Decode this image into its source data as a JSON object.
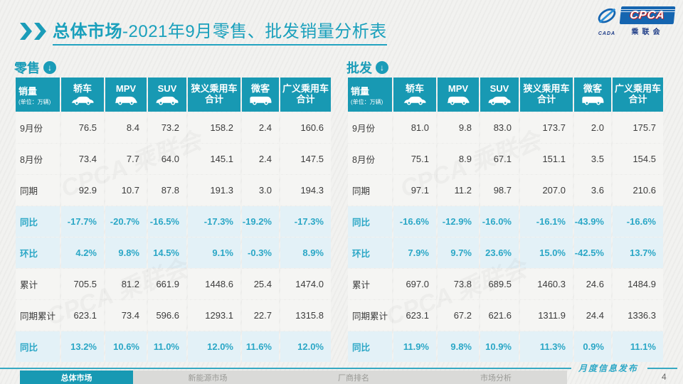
{
  "page": {
    "title_highlight": "总体市场",
    "title_rest": "-2021年9月零售、批发销量分析表",
    "page_number": "4"
  },
  "logo": {
    "name": "CPCA",
    "subtitle": "乘联会",
    "small": "CADA",
    "watermark": "CPCA 乘联会"
  },
  "colors": {
    "accent_teal": "#1899b3",
    "percent_text": "#2ba7c6",
    "percent_row_bg": "#e3f1f7",
    "logo_blue": "#1565b0"
  },
  "table_header": {
    "col0_title": "销量",
    "col0_unit": "(单位：万辆)",
    "cols": [
      {
        "label": "轿车",
        "icon": "sedan-car-icon"
      },
      {
        "label": "MPV",
        "icon": "mpv-car-icon"
      },
      {
        "label": "SUV",
        "icon": "suv-car-icon"
      },
      {
        "label": "狭义乘用车合计",
        "icon": ""
      },
      {
        "label": "微客",
        "icon": "microvan-icon"
      },
      {
        "label": "广义乘用车合计",
        "icon": ""
      }
    ]
  },
  "tables": [
    {
      "id": "retail",
      "section_label": "零售",
      "section_icon": "circle-down-arrow-icon",
      "rows": [
        {
          "label": "9月份",
          "style": "normal",
          "values": [
            "76.5",
            "8.4",
            "73.2",
            "158.2",
            "2.4",
            "160.6"
          ]
        },
        {
          "label": "8月份",
          "style": "normal",
          "values": [
            "73.4",
            "7.7",
            "64.0",
            "145.1",
            "2.4",
            "147.5"
          ]
        },
        {
          "label": "同期",
          "style": "normal",
          "values": [
            "92.9",
            "10.7",
            "87.8",
            "191.3",
            "3.0",
            "194.3"
          ]
        },
        {
          "label": "同比",
          "style": "pct",
          "values": [
            "-17.7%",
            "-20.7%",
            "-16.5%",
            "-17.3%",
            "-19.2%",
            "-17.3%"
          ]
        },
        {
          "label": "环比",
          "style": "pct",
          "values": [
            "4.2%",
            "9.8%",
            "14.5%",
            "9.1%",
            "-0.3%",
            "8.9%"
          ]
        },
        {
          "label": "累计",
          "style": "normal",
          "values": [
            "705.5",
            "81.2",
            "661.9",
            "1448.6",
            "25.4",
            "1474.0"
          ]
        },
        {
          "label": "同期累计",
          "style": "normal",
          "values": [
            "623.1",
            "73.4",
            "596.6",
            "1293.1",
            "22.7",
            "1315.8"
          ]
        },
        {
          "label": "同比",
          "style": "pct",
          "values": [
            "13.2%",
            "10.6%",
            "11.0%",
            "12.0%",
            "11.6%",
            "12.0%"
          ]
        }
      ]
    },
    {
      "id": "wholesale",
      "section_label": "批发",
      "section_icon": "circle-down-arrow-icon",
      "rows": [
        {
          "label": "9月份",
          "style": "normal",
          "values": [
            "81.0",
            "9.8",
            "83.0",
            "173.7",
            "2.0",
            "175.7"
          ]
        },
        {
          "label": "8月份",
          "style": "normal",
          "values": [
            "75.1",
            "8.9",
            "67.1",
            "151.1",
            "3.5",
            "154.5"
          ]
        },
        {
          "label": "同期",
          "style": "normal",
          "values": [
            "97.1",
            "11.2",
            "98.7",
            "207.0",
            "3.6",
            "210.6"
          ]
        },
        {
          "label": "同比",
          "style": "pct",
          "values": [
            "-16.6%",
            "-12.9%",
            "-16.0%",
            "-16.1%",
            "-43.9%",
            "-16.6%"
          ]
        },
        {
          "label": "环比",
          "style": "pct",
          "values": [
            "7.9%",
            "9.7%",
            "23.6%",
            "15.0%",
            "-42.5%",
            "13.7%"
          ]
        },
        {
          "label": "累计",
          "style": "normal",
          "values": [
            "697.0",
            "73.8",
            "689.5",
            "1460.3",
            "24.6",
            "1484.9"
          ]
        },
        {
          "label": "同期累计",
          "style": "normal",
          "values": [
            "623.1",
            "67.2",
            "621.6",
            "1311.9",
            "24.4",
            "1336.3"
          ]
        },
        {
          "label": "同比",
          "style": "pct",
          "values": [
            "11.9%",
            "9.8%",
            "10.9%",
            "11.3%",
            "0.9%",
            "11.1%"
          ]
        }
      ]
    }
  ],
  "footer": {
    "release_label": "月度信息发布",
    "tabs": [
      {
        "label": "总体市场",
        "active": true
      },
      {
        "label": "新能源市场",
        "active": false
      },
      {
        "label": "厂商排名",
        "active": false
      },
      {
        "label": "市场分析",
        "active": false
      }
    ]
  }
}
